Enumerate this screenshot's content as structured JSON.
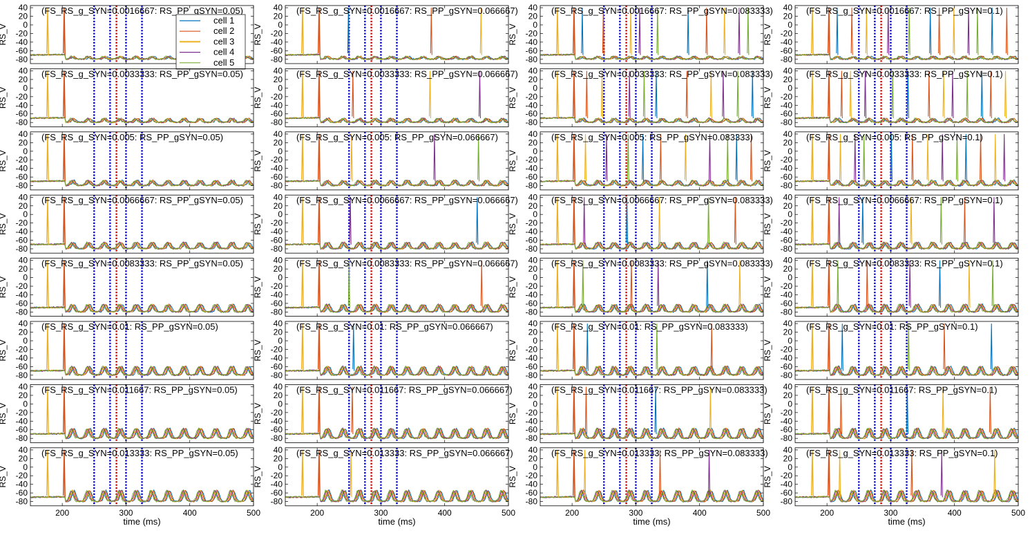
{
  "chart_data": {
    "type": "line",
    "layout": {
      "rows": 8,
      "cols": 4
    },
    "fs_rs_g_values": [
      "0.0016667",
      "0.0033333",
      "0.005",
      "0.0066667",
      "0.0083333",
      "0.01",
      "0.011667",
      "0.013333"
    ],
    "rs_pp_gsyn_values": [
      "0.05",
      "0.066667",
      "0.083333",
      "0.1"
    ],
    "title_template": "(FS_RS_g_SYN={g}: RS_PP_gSYN={p})",
    "ylabel": "RS_V",
    "xlabel": "time (ms)",
    "xlim": [
      150,
      500
    ],
    "ylim": [
      -90,
      45
    ],
    "xticks": [
      200,
      300,
      400,
      500
    ],
    "yticks": [
      40,
      20,
      0,
      -20,
      -40,
      -60,
      -80
    ],
    "legend": {
      "placement": "top-right of first panel",
      "entries": [
        "cell 1",
        "cell 2",
        "cell 3",
        "cell 4",
        "cell 5"
      ]
    },
    "series": [
      {
        "name": "cell 1",
        "color": "#0072BD"
      },
      {
        "name": "cell 2",
        "color": "#D95319"
      },
      {
        "name": "cell 3",
        "color": "#EDB120"
      },
      {
        "name": "cell 4",
        "color": "#7E2F8E"
      },
      {
        "name": "cell 5",
        "color": "#77AC30"
      }
    ],
    "resting_potential": -72,
    "spike_peak": 40,
    "oscillation_period_ms": 25,
    "early_spikes": [
      {
        "t": 177,
        "cell": 3
      },
      {
        "t": 203,
        "cell": 2
      }
    ],
    "late_spike_times_by_column": [
      [],
      [
        253,
        380,
        455
      ],
      [
        220,
        250,
        290,
        310,
        335,
        380,
        415,
        440,
        460,
        480
      ],
      [
        220,
        240,
        260,
        300,
        330,
        360,
        380,
        400,
        420,
        440,
        460,
        480
      ]
    ],
    "vertical_markers": [
      {
        "x": 250,
        "color": "#0000CC",
        "style": "dotted"
      },
      {
        "x": 275,
        "color": "#0000CC",
        "style": "dotted"
      },
      {
        "x": 285,
        "color": "#CC0000",
        "style": "dotted"
      },
      {
        "x": 300,
        "color": "#0000CC",
        "style": "dotted"
      },
      {
        "x": 325,
        "color": "#0000CC",
        "style": "dotted"
      }
    ]
  }
}
